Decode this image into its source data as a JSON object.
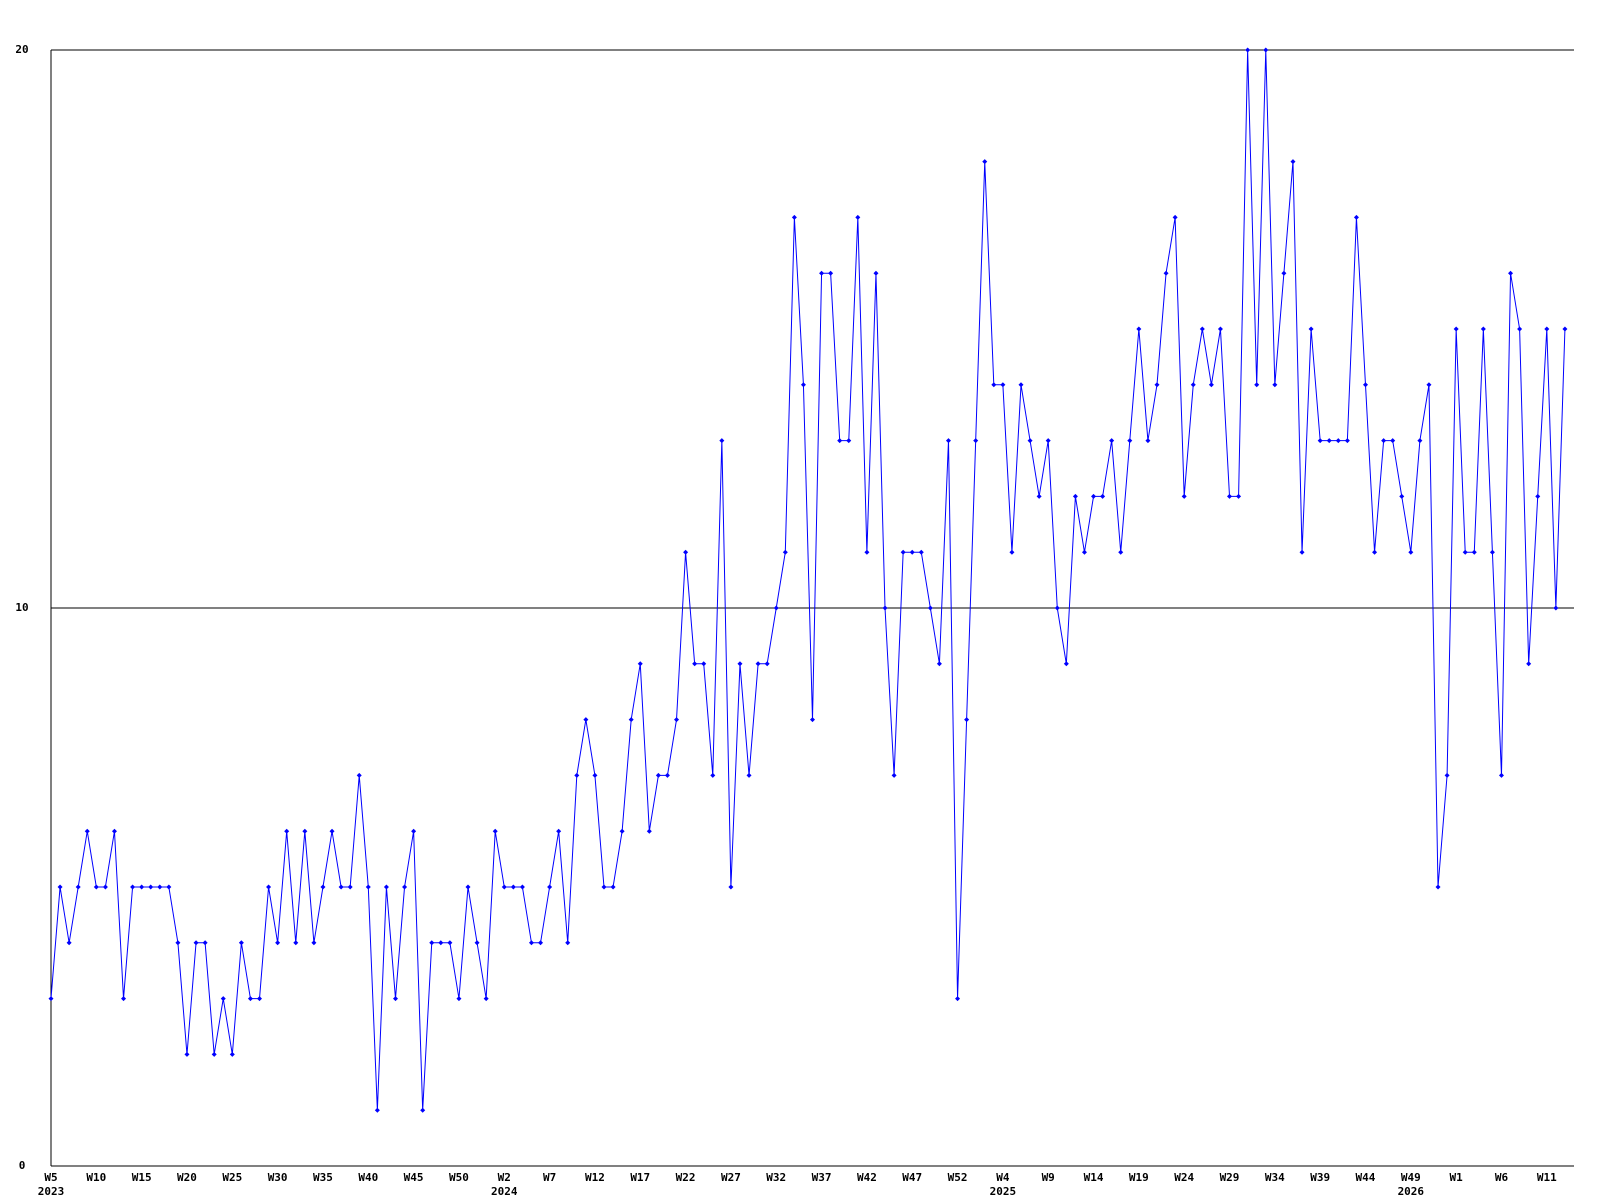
{
  "chart_data": {
    "type": "line",
    "color": "#0000ff",
    "grid": true,
    "ylim": [
      0,
      20
    ],
    "yticks": [
      0,
      10,
      20
    ],
    "categories": [
      "W5",
      null,
      null,
      null,
      null,
      "W10",
      null,
      null,
      null,
      null,
      "W15",
      null,
      null,
      null,
      null,
      "W20",
      null,
      null,
      null,
      null,
      "W25",
      null,
      null,
      null,
      null,
      "W30",
      null,
      null,
      null,
      null,
      "W35",
      null,
      null,
      null,
      null,
      "W40",
      null,
      null,
      null,
      null,
      "W45",
      null,
      null,
      null,
      null,
      "W50",
      null,
      null,
      null,
      null,
      "W2",
      null,
      null,
      null,
      null,
      "W7",
      null,
      null,
      null,
      null,
      "W12",
      null,
      null,
      null,
      null,
      "W17",
      null,
      null,
      null,
      null,
      "W22",
      null,
      null,
      null,
      null,
      "W27",
      null,
      null,
      null,
      null,
      "W32",
      null,
      null,
      null,
      null,
      "W37",
      null,
      null,
      null,
      null,
      "W42",
      null,
      null,
      null,
      null,
      "W47",
      null,
      null,
      null,
      null,
      "W52",
      null,
      null,
      null,
      null,
      "W4",
      null,
      null,
      null,
      null,
      "W9",
      null,
      null,
      null,
      null,
      "W14",
      null,
      null,
      null,
      null,
      "W19",
      null,
      null,
      null,
      null,
      "W24",
      null,
      null,
      null,
      null,
      "W29",
      null,
      null,
      null,
      null,
      "W34",
      null,
      null,
      null,
      null,
      "W39",
      null,
      null,
      null,
      null,
      "W44",
      null,
      null,
      null,
      null,
      "W49",
      null,
      null,
      null,
      null,
      "W1",
      null,
      null,
      null,
      null,
      "W6",
      null,
      null,
      null,
      null,
      "W11",
      null,
      null
    ],
    "category_years": [
      "2023",
      null,
      null,
      null,
      null,
      null,
      null,
      null,
      null,
      null,
      null,
      null,
      null,
      null,
      null,
      null,
      null,
      null,
      null,
      null,
      null,
      null,
      null,
      null,
      null,
      null,
      null,
      null,
      null,
      null,
      null,
      null,
      null,
      null,
      null,
      null,
      null,
      null,
      null,
      null,
      null,
      null,
      null,
      null,
      null,
      null,
      null,
      null,
      null,
      null,
      "2024",
      null,
      null,
      null,
      null,
      null,
      null,
      null,
      null,
      null,
      null,
      null,
      null,
      null,
      null,
      null,
      null,
      null,
      null,
      null,
      null,
      null,
      null,
      null,
      null,
      null,
      null,
      null,
      null,
      null,
      null,
      null,
      null,
      null,
      null,
      null,
      null,
      null,
      null,
      null,
      null,
      null,
      null,
      null,
      null,
      null,
      null,
      null,
      null,
      null,
      null,
      null,
      null,
      null,
      null,
      "2025",
      null,
      null,
      null,
      null,
      null,
      null,
      null,
      null,
      null,
      null,
      null,
      null,
      null,
      null,
      null,
      null,
      null,
      null,
      null,
      null,
      null,
      null,
      null,
      null,
      null,
      null,
      null,
      null,
      null,
      null,
      null,
      null,
      null,
      null,
      null,
      null,
      null,
      null,
      null,
      null,
      null,
      null,
      null,
      null,
      "2026",
      null,
      null,
      null,
      null,
      null,
      null,
      null,
      null,
      null,
      null,
      null,
      null
    ],
    "values": [
      3,
      5,
      4,
      5,
      6,
      5,
      5,
      6,
      3,
      5,
      5,
      5,
      5,
      5,
      4,
      2,
      4,
      4,
      2,
      3,
      2,
      4,
      3,
      3,
      5,
      4,
      6,
      4,
      6,
      4,
      5,
      6,
      5,
      5,
      7,
      5,
      1,
      5,
      3,
      5,
      6,
      1,
      4,
      4,
      4,
      3,
      5,
      4,
      3,
      6,
      5,
      5,
      5,
      4,
      4,
      5,
      6,
      4,
      7,
      8,
      7,
      5,
      5,
      6,
      8,
      9,
      6,
      7,
      7,
      8,
      11,
      9,
      9,
      7,
      13,
      5,
      9,
      7,
      9,
      9,
      10,
      11,
      17,
      14,
      8,
      16,
      16,
      13,
      13,
      17,
      11,
      16,
      10,
      7,
      11,
      11,
      11,
      10,
      9,
      13,
      3,
      8,
      13,
      18,
      14,
      14,
      11,
      14,
      13,
      12,
      13,
      10,
      9,
      12,
      11,
      12,
      12,
      13,
      11,
      13,
      15,
      13,
      14,
      16,
      17,
      12,
      14,
      15,
      14,
      15,
      12,
      12,
      20,
      14,
      20,
      14,
      16,
      18,
      11,
      15,
      13,
      13,
      13,
      13,
      17,
      14,
      11,
      13,
      13,
      12,
      11,
      13,
      14,
      5,
      7,
      15,
      11,
      11,
      15,
      11,
      7,
      16,
      15,
      9,
      12,
      15,
      10,
      15
    ]
  }
}
